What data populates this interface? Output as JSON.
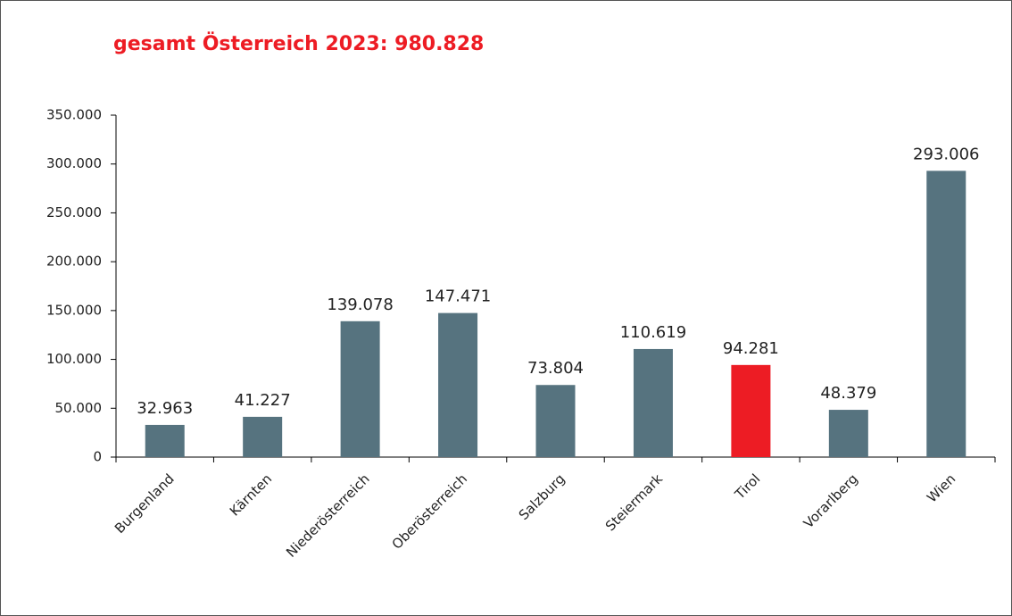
{
  "chart_data": {
    "type": "bar",
    "title": "gesamt Österreich 2023: 980.828",
    "categories": [
      "Burgenland",
      "Kärnten",
      "Niederösterreich",
      "Oberösterreich",
      "Salzburg",
      "Steiermark",
      "Tirol",
      "Vorarlberg",
      "Wien"
    ],
    "values": [
      32963,
      41227,
      139078,
      147471,
      73804,
      110619,
      94281,
      48379,
      293006
    ],
    "value_labels": [
      "32.963",
      "41.227",
      "139.078",
      "147.471",
      "73.804",
      "110.619",
      "94.281",
      "48.379",
      "293.006"
    ],
    "colors": [
      "#56737f",
      "#56737f",
      "#56737f",
      "#56737f",
      "#56737f",
      "#56737f",
      "#ed1c24",
      "#56737f",
      "#56737f"
    ],
    "ylim": [
      0,
      350000
    ],
    "yticks": [
      0,
      {
        "value": 50000,
        "label": "50.000"
      },
      {
        "value": 100000,
        "label": "100.000"
      },
      {
        "value": 150000,
        "label": "150.000"
      },
      {
        "value": 200000,
        "label": "200.000"
      },
      {
        "value": 250000,
        "label": "250.000"
      },
      {
        "value": 300000,
        "label": "300.000"
      },
      {
        "value": 350000,
        "label": "350.000"
      }
    ],
    "grid": false
  }
}
